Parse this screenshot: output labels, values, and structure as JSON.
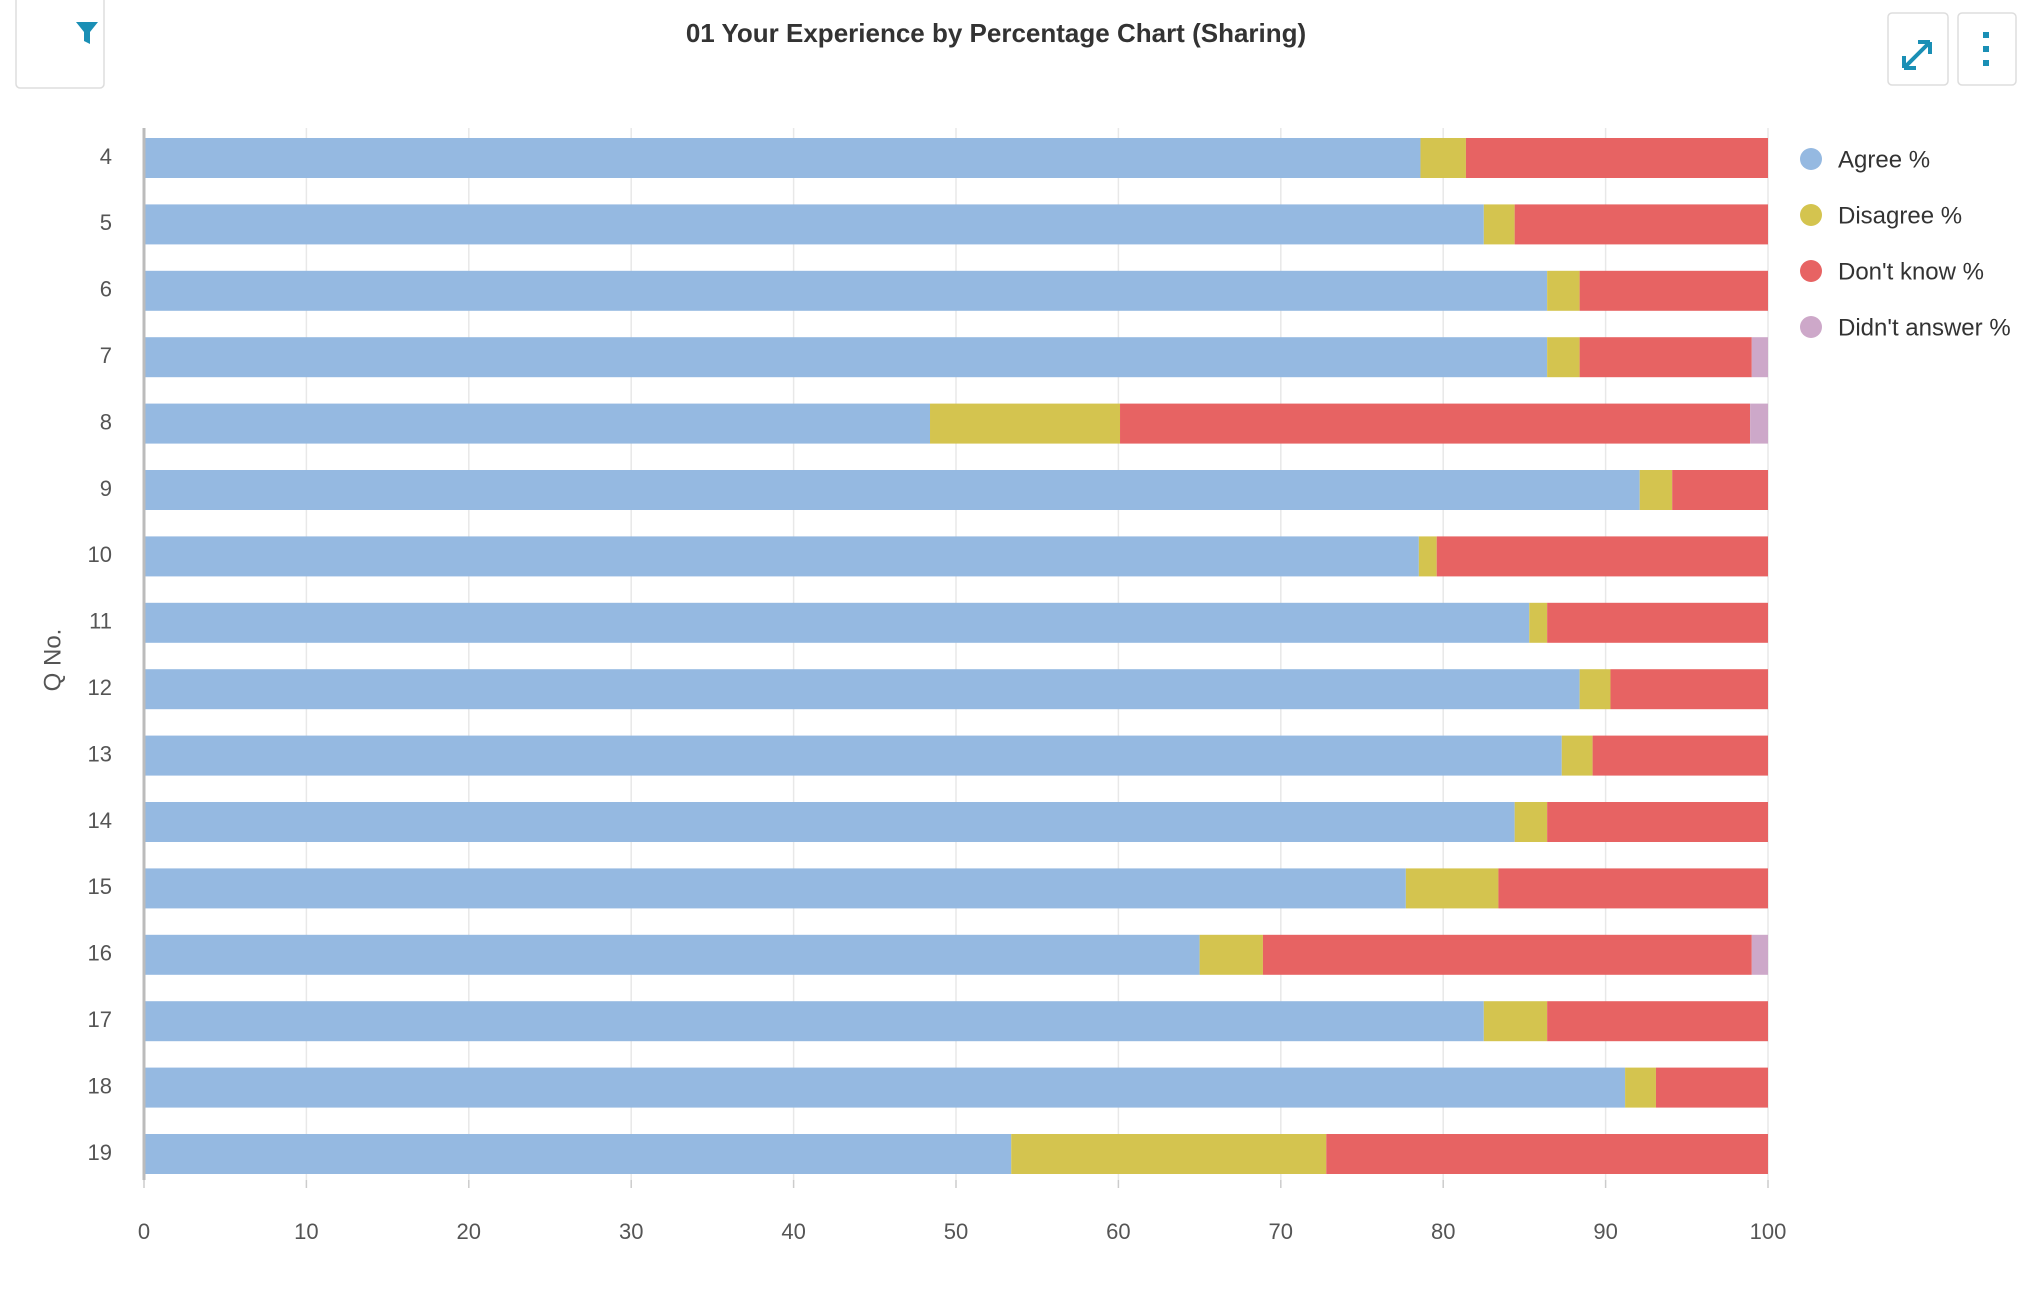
{
  "chart_data": {
    "type": "stacked_bar_horizontal",
    "title": "01 Your Experience by Percentage Chart (Sharing)",
    "y_label": "Q No.",
    "categories": [
      "4",
      "5",
      "6",
      "7",
      "8",
      "9",
      "10",
      "11",
      "12",
      "13",
      "14",
      "15",
      "16",
      "17",
      "18",
      "19"
    ],
    "series": [
      {
        "name": "Agree %",
        "color": "#95b9e1",
        "values": [
          78.6,
          82.5,
          86.4,
          86.4,
          48.4,
          92.1,
          78.5,
          85.3,
          88.4,
          87.3,
          84.4,
          77.7,
          65.0,
          82.5,
          91.2,
          53.4
        ]
      },
      {
        "name": "Disagree %",
        "color": "#d4c44f",
        "values": [
          2.8,
          1.9,
          2.0,
          2.0,
          11.7,
          2.0,
          1.1,
          1.1,
          1.9,
          1.9,
          2.0,
          5.7,
          3.9,
          3.9,
          1.9,
          19.4
        ]
      },
      {
        "name": "Don't know %",
        "color": "#e76363",
        "values": [
          18.6,
          15.6,
          11.6,
          10.6,
          38.8,
          5.9,
          20.4,
          13.6,
          9.7,
          10.8,
          13.6,
          16.6,
          30.1,
          13.6,
          6.9,
          27.2
        ]
      },
      {
        "name": "Didn't answer %",
        "color": "#cda8c9",
        "values": [
          0,
          0,
          0,
          1.0,
          1.1,
          0,
          0,
          0,
          0,
          0,
          0,
          0,
          1.0,
          0,
          0,
          0
        ]
      }
    ],
    "xlim": [
      0,
      100
    ],
    "xticks": [
      0,
      10,
      20,
      30,
      40,
      50,
      60,
      70,
      80,
      90,
      100
    ],
    "grid": true,
    "legend": "right"
  }
}
